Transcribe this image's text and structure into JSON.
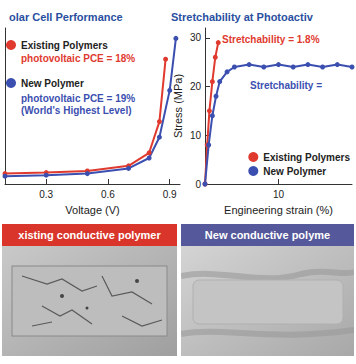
{
  "chart_data": [
    {
      "type": "line",
      "title": "olar Cell Performance",
      "x_label": "Voltage (V)",
      "xlim": [
        0.1,
        0.95
      ],
      "xticks": [
        0.3,
        0.6,
        0.9
      ],
      "ylim": [
        -26,
        4
      ],
      "tick_labels": "x",
      "legend": "upper left",
      "marker": "circle",
      "series": [
        {
          "name": "Existing Polymers",
          "color": "#e03a2f",
          "x": [
            0.1,
            0.3,
            0.5,
            0.7,
            0.8,
            0.85,
            0.88
          ],
          "values": [
            -24,
            -23.8,
            -23.5,
            -22.5,
            -20,
            -14,
            -2
          ],
          "annotations": [
            "photovoltaic PCE = 18%"
          ]
        },
        {
          "name": "New Polymer",
          "color": "#3b4fb0",
          "x": [
            0.1,
            0.3,
            0.5,
            0.7,
            0.8,
            0.85,
            0.9,
            0.93
          ],
          "values": [
            -24.5,
            -24.3,
            -24,
            -23,
            -21,
            -17,
            -8,
            2
          ],
          "annotations": [
            "photovoltaic PCE = 19%",
            "(World's Highest Level)"
          ]
        }
      ]
    },
    {
      "type": "line",
      "title": "Stretchability at Photoactiv",
      "x_label": "Engineering strain (%)",
      "y_label": "Stress (MPa)",
      "xlim": [
        0,
        20
      ],
      "xticks": [
        10
      ],
      "ylim": [
        0,
        32
      ],
      "yticks": [
        0,
        10,
        20,
        30
      ],
      "legend": "lower right",
      "marker": "circle",
      "series": [
        {
          "name": "Existing Polymers",
          "color": "#e03a2f",
          "x": [
            0,
            0.3,
            0.6,
            1,
            1.4,
            1.8
          ],
          "values": [
            0,
            8,
            15,
            21,
            26,
            29
          ],
          "annotations": [
            "Stretchability = 1.8%"
          ]
        },
        {
          "name": "New Polymer",
          "color": "#3b4fb0",
          "x": [
            0,
            0.5,
            1,
            1.5,
            2,
            3,
            4,
            6,
            8,
            10,
            12,
            14,
            16,
            18,
            20
          ],
          "values": [
            0,
            8,
            14,
            18,
            21,
            23,
            24,
            24.5,
            24,
            24.5,
            24,
            24.5,
            24,
            24.5,
            24
          ],
          "annotations": [
            "Stretchability ="
          ]
        }
      ]
    }
  ],
  "panels": [
    {
      "label": "xisting conductive polymer",
      "color": "#d9352b"
    },
    {
      "label": "New conductive polyme",
      "color": "#55589a"
    }
  ]
}
